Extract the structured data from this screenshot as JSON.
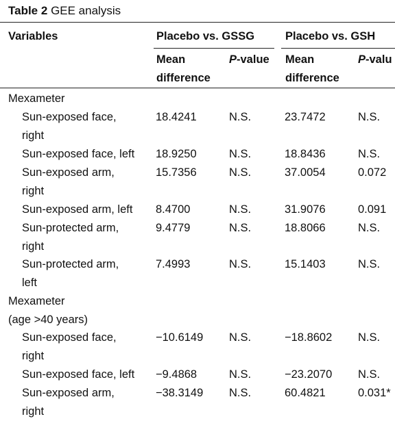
{
  "table": {
    "caption_label": "Table 2",
    "caption_text": "GEE analysis",
    "header": {
      "variables": "Variables",
      "group1": "Placebo vs. GSSG",
      "group2": "Placebo vs. GSH",
      "mean1_l1": "Mean",
      "mean1_l2": "difference",
      "p1_italic": "P",
      "p1_rest": "-value",
      "mean2_l1": "Mean",
      "mean2_l2": "difference",
      "p2_italic": "P",
      "p2_rest": "-valu"
    },
    "sections": [
      {
        "title_line1": "Mexameter",
        "title_line2": ""
      },
      {
        "title_line1": "Mexameter",
        "title_line2": "(age >40 years)"
      }
    ],
    "rows": [
      {
        "var_l1": "Sun-exposed face,",
        "var_l2": "right",
        "md1": "18.4241",
        "p1": "N.S.",
        "md2": "23.7472",
        "p2": "N.S."
      },
      {
        "var_l1": "Sun-exposed face, left",
        "var_l2": "",
        "md1": "18.9250",
        "p1": "N.S.",
        "md2": "18.8436",
        "p2": "N.S."
      },
      {
        "var_l1": "Sun-exposed arm,",
        "var_l2": "right",
        "md1": "15.7356",
        "p1": "N.S.",
        "md2": "37.0054",
        "p2": "0.072"
      },
      {
        "var_l1": "Sun-exposed arm, left",
        "var_l2": "",
        "md1": "8.4700",
        "p1": "N.S.",
        "md2": "31.9076",
        "p2": "0.091"
      },
      {
        "var_l1": "Sun-protected arm,",
        "var_l2": "right",
        "md1": "9.4779",
        "p1": "N.S.",
        "md2": "18.8066",
        "p2": "N.S."
      },
      {
        "var_l1": "Sun-protected arm,",
        "var_l2": "left",
        "md1": "7.4993",
        "p1": "N.S.",
        "md2": "15.1403",
        "p2": "N.S."
      },
      {
        "var_l1": "Sun-exposed face,",
        "var_l2": "right",
        "md1": "−10.6149",
        "p1": "N.S.",
        "md2": "−18.8602",
        "p2": "N.S."
      },
      {
        "var_l1": "Sun-exposed face, left",
        "var_l2": "",
        "md1": "−9.4868",
        "p1": "N.S.",
        "md2": "−23.2070",
        "p2": "N.S."
      },
      {
        "var_l1": "Sun-exposed arm,",
        "var_l2": "right",
        "md1": "−38.3149",
        "p1": "N.S.",
        "md2": "60.4821",
        "p2": "0.031*"
      }
    ]
  }
}
